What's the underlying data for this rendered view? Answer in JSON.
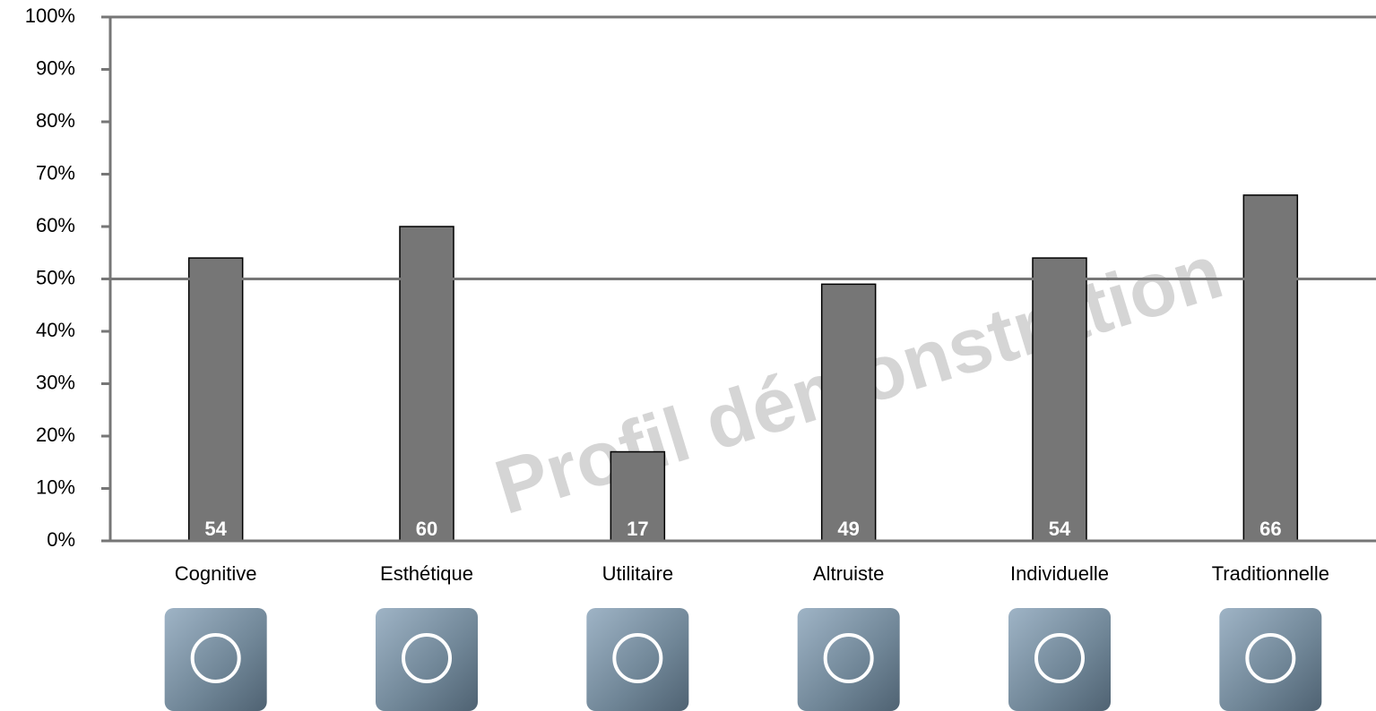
{
  "chart_data": {
    "type": "bar",
    "categories": [
      "Cognitive",
      "Esthétique",
      "Utilitaire",
      "Altruiste",
      "Individuelle",
      "Traditionnelle"
    ],
    "values": [
      54,
      60,
      17,
      49,
      54,
      66
    ],
    "color": "#767676",
    "ylim": [
      0,
      100
    ],
    "yticks": [
      {
        "value": 0,
        "label": "0%"
      },
      {
        "value": 10,
        "label": "10%"
      },
      {
        "value": 20,
        "label": "20%"
      },
      {
        "value": 30,
        "label": "30%"
      },
      {
        "value": 40,
        "label": "40%"
      },
      {
        "value": 50,
        "label": "50%"
      },
      {
        "value": 60,
        "label": "60%"
      },
      {
        "value": 70,
        "label": "70%"
      },
      {
        "value": 80,
        "label": "80%"
      },
      {
        "value": 90,
        "label": "90%"
      },
      {
        "value": 100,
        "label": "100%"
      }
    ],
    "reference_line": 50,
    "watermark": "Profil démonstration"
  }
}
